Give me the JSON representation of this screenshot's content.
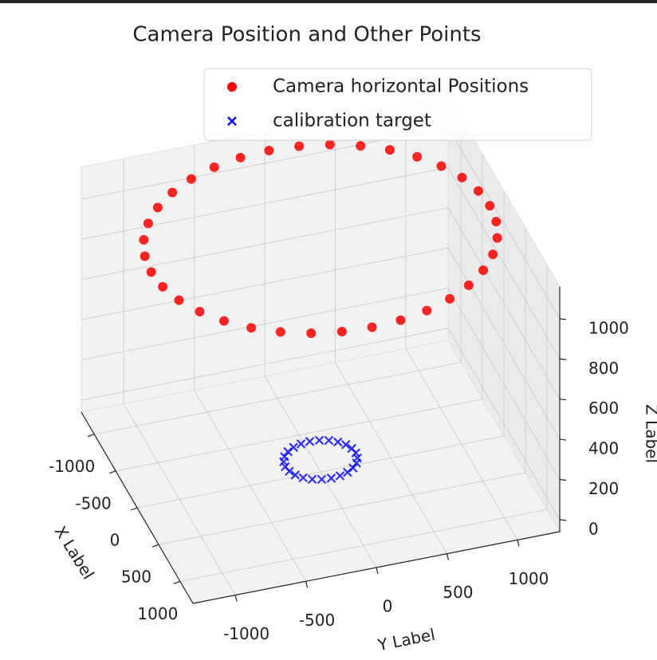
{
  "chart_data": {
    "type": "scatter3d",
    "title": "Camera Position and Other Points",
    "xlabel": "X Label",
    "ylabel": "Y Label",
    "zlabel": "Z Label",
    "xlim": [
      -1300,
      1300
    ],
    "ylim": [
      -1300,
      1300
    ],
    "zlim": [
      -60,
      1160
    ],
    "xticks": [
      -1000,
      -500,
      0,
      500,
      1000
    ],
    "yticks": [
      -1000,
      -500,
      0,
      500,
      1000
    ],
    "zticks": [
      0,
      200,
      400,
      600,
      800,
      1000
    ],
    "grid": true,
    "legend": "upper right",
    "series": [
      {
        "name": "Camera horizontal Positions",
        "color": "#ff0000",
        "marker": "o",
        "x": [
          1200,
          1182,
          1128,
          1039,
          919,
          771,
          600,
          410,
          208,
          0,
          -208,
          -410,
          -600,
          -771,
          -919,
          -1039,
          -1128,
          -1182,
          -1200,
          -1182,
          -1128,
          -1039,
          -919,
          -771,
          -600,
          -410,
          -208,
          0,
          208,
          410,
          600,
          771,
          919,
          1039,
          1128,
          1182
        ],
        "y": [
          0,
          208,
          410,
          600,
          771,
          919,
          1039,
          1128,
          1182,
          1200,
          1182,
          1128,
          1039,
          919,
          771,
          600,
          410,
          208,
          0,
          -208,
          -410,
          -600,
          -771,
          -919,
          -1039,
          -1128,
          -1182,
          -1200,
          -1182,
          -1128,
          -1039,
          -919,
          -771,
          -600,
          -410,
          -208
        ],
        "z": [
          1100,
          1100,
          1100,
          1100,
          1100,
          1100,
          1100,
          1100,
          1100,
          1100,
          1100,
          1100,
          1100,
          1100,
          1100,
          1100,
          1100,
          1100,
          1100,
          1100,
          1100,
          1100,
          1100,
          1100,
          1100,
          1100,
          1100,
          1100,
          1100,
          1100,
          1100,
          1100,
          1100,
          1100,
          1100,
          1100
        ]
      },
      {
        "name": "calibration target",
        "color": "#0000ff",
        "marker": "x",
        "x": [
          250,
          241,
          217,
          177,
          125,
          65,
          0,
          -65,
          -125,
          -177,
          -217,
          -241,
          -250,
          -241,
          -217,
          -177,
          -125,
          -65,
          0,
          65,
          125,
          177,
          217,
          241
        ],
        "y": [
          0,
          65,
          125,
          177,
          217,
          241,
          250,
          241,
          217,
          177,
          125,
          65,
          0,
          -65,
          -125,
          -177,
          -217,
          -241,
          -250,
          -241,
          -217,
          -177,
          -125,
          -65
        ],
        "z": [
          0,
          0,
          0,
          0,
          0,
          0,
          0,
          0,
          0,
          0,
          0,
          0,
          0,
          0,
          0,
          0,
          0,
          0,
          0,
          0,
          0,
          0,
          0,
          0
        ]
      }
    ]
  }
}
